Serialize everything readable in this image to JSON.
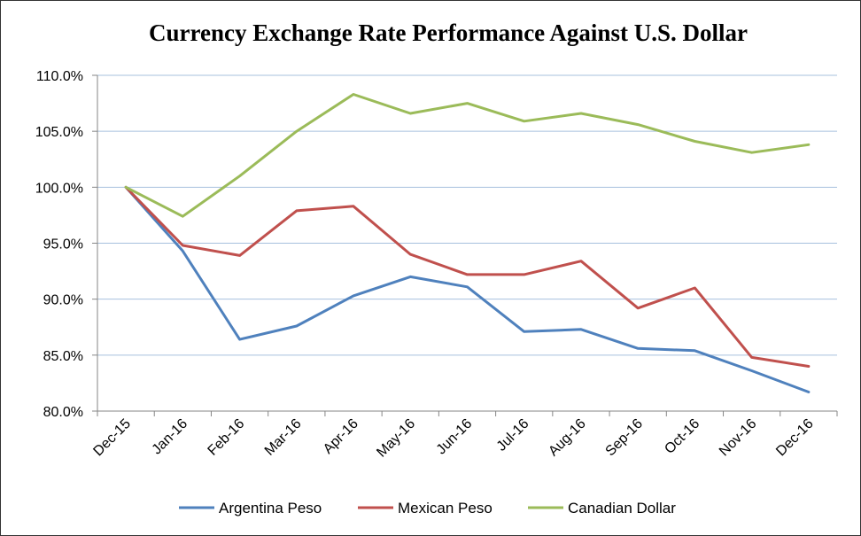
{
  "chart_data": {
    "type": "line",
    "title": "Currency Exchange Rate Performance Against U.S. Dollar",
    "xlabel": "",
    "ylabel": "",
    "categories": [
      "Dec-15",
      "Jan-16",
      "Feb-16",
      "Mar-16",
      "Apr-16",
      "May-16",
      "Jun-16",
      "Jul-16",
      "Aug-16",
      "Sep-16",
      "Oct-16",
      "Nov-16",
      "Dec-16"
    ],
    "ylim": [
      80,
      110
    ],
    "yticks": [
      80,
      85,
      90,
      95,
      100,
      105,
      110
    ],
    "ytick_labels": [
      "80.0%",
      "85.0%",
      "90.0%",
      "95.0%",
      "100.0%",
      "105.0%",
      "110.0%"
    ],
    "grid": true,
    "legend_position": "bottom",
    "series": [
      {
        "name": "Argentina Peso",
        "color": "#4F81BD",
        "values": [
          100.0,
          94.3,
          86.4,
          87.6,
          90.3,
          92.0,
          91.1,
          87.1,
          87.3,
          85.6,
          85.4,
          83.6,
          81.7
        ]
      },
      {
        "name": "Mexican Peso",
        "color": "#C0504D",
        "values": [
          100.0,
          94.8,
          93.9,
          97.9,
          98.3,
          94.0,
          92.2,
          92.2,
          93.4,
          89.2,
          91.0,
          84.8,
          84.0
        ]
      },
      {
        "name": "Canadian Dollar",
        "color": "#9BBB59",
        "values": [
          100.0,
          97.4,
          101.0,
          105.0,
          108.3,
          106.6,
          107.5,
          105.9,
          106.6,
          105.6,
          104.1,
          103.1,
          103.8
        ]
      }
    ]
  }
}
